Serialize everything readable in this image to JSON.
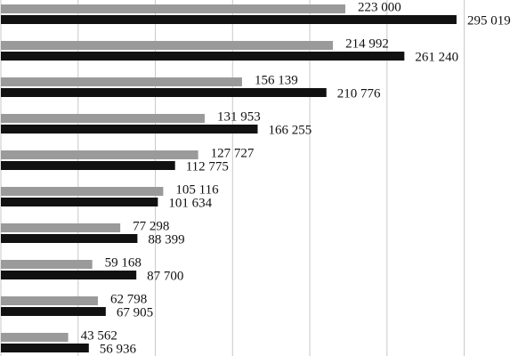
{
  "chart_data": {
    "type": "hbar",
    "series": [
      {
        "color": "#9a9a9a",
        "values": [
          223000,
          214992,
          156139,
          131953,
          127727,
          105116,
          77298,
          59168,
          62798,
          43562
        ],
        "value_labels": [
          "223 000",
          "214 992",
          "156 139",
          "131 953",
          "127 727",
          "105 116",
          "77 298",
          "59 168",
          "62 798",
          "43 562"
        ]
      },
      {
        "color": "#111111",
        "values": [
          295019,
          261240,
          210776,
          166255,
          112775,
          101634,
          88399,
          87700,
          67905,
          56936
        ],
        "value_labels": [
          "295 019",
          "261 240",
          "210 776",
          "166 255",
          "112 775",
          "101 634",
          "88 399",
          "87 700",
          "67 905",
          "56 936"
        ]
      }
    ],
    "xlim": [
      0,
      340000
    ],
    "xticks": [
      0,
      50000,
      100000,
      150000,
      200000,
      250000,
      300000
    ],
    "grid": true
  }
}
